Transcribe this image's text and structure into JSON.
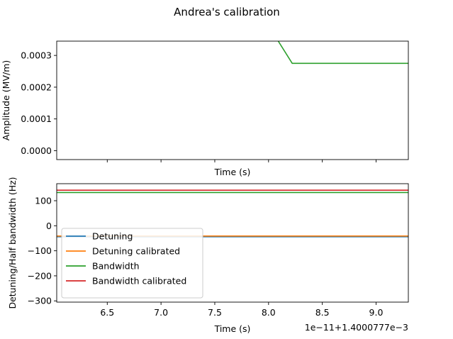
{
  "figure": {
    "title": "Andrea's calibration"
  },
  "chart_data": [
    {
      "type": "line",
      "name": "amplitude",
      "xlabel": "Time (s)",
      "ylabel": "Amplitude (MV/m)",
      "xlim": [
        6.03,
        9.3
      ],
      "ylim": [
        -2.8e-05,
        0.000345
      ],
      "yticks": [
        0.0,
        0.0001,
        0.0002,
        0.0003
      ],
      "ytick_labels": [
        "0.0000",
        "0.0001",
        "0.0002",
        "0.0003"
      ],
      "xtick_values": [
        6.5,
        7.0,
        7.5,
        8.0,
        8.5,
        9.0
      ],
      "show_xtick_labels": false,
      "grid": false,
      "series": [
        {
          "color": "#2ca02c",
          "x": [
            8.09,
            8.22,
            9.3
          ],
          "y": [
            0.000345,
            0.000275,
            0.000275
          ]
        }
      ]
    },
    {
      "type": "line",
      "name": "detuning",
      "xlabel": "Time (s)",
      "ylabel": "Detuning/Half bandwidth (Hz)",
      "x_offset_text": "1e−11+1.4000777e−3",
      "xlim": [
        6.03,
        9.3
      ],
      "ylim": [
        -305,
        168
      ],
      "yticks": [
        -300,
        -200,
        -100,
        0,
        100
      ],
      "ytick_labels": [
        "−300",
        "−200",
        "−100",
        "0",
        "100"
      ],
      "xticks": [
        6.5,
        7.0,
        7.5,
        8.0,
        8.5,
        9.0
      ],
      "xtick_labels": [
        "6.5",
        "7.0",
        "7.5",
        "8.0",
        "8.5",
        "9.0"
      ],
      "grid": false,
      "legend_position": "lower-left",
      "series": [
        {
          "name": "Detuning",
          "color": "#1f77b4",
          "x": [
            6.03,
            9.3
          ],
          "y": [
            -44,
            -44
          ]
        },
        {
          "name": "Detuning calibrated",
          "color": "#ff7f0e",
          "x": [
            6.03,
            9.3
          ],
          "y": [
            -41,
            -41
          ]
        },
        {
          "name": "Bandwidth",
          "color": "#2ca02c",
          "x": [
            6.03,
            9.3
          ],
          "y": [
            133,
            133
          ]
        },
        {
          "name": "Bandwidth calibrated",
          "color": "#d62728",
          "x": [
            6.03,
            9.3
          ],
          "y": [
            142,
            142
          ]
        }
      ]
    }
  ]
}
